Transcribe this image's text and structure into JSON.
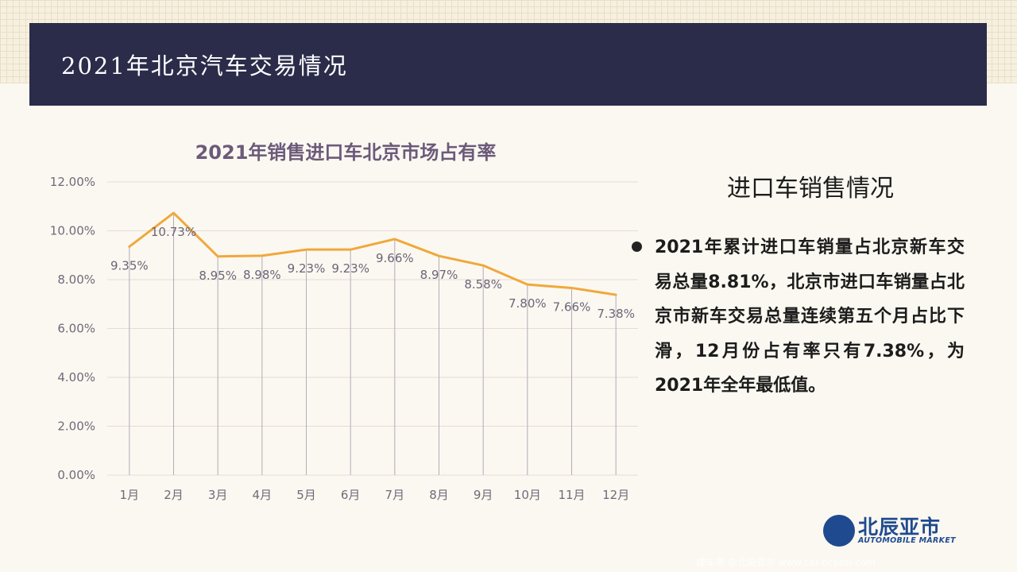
{
  "header": {
    "title": "2021年北京汽车交易情况"
  },
  "chart_data": {
    "type": "line",
    "title": "2021年销售进口车北京市场占有率",
    "categories": [
      "1月",
      "2月",
      "3月",
      "4月",
      "5月",
      "6月",
      "7月",
      "8月",
      "9月",
      "10月",
      "11月",
      "12月"
    ],
    "series": [
      {
        "values": [
          9.35,
          10.73,
          8.95,
          8.98,
          9.23,
          9.23,
          9.66,
          8.97,
          8.58,
          7.8,
          7.66,
          7.38
        ]
      }
    ],
    "data_labels": [
      "9.35%",
      "10.73%",
      "8.95%",
      "8.98%",
      "9.23%",
      "9.23%",
      "9.66%",
      "8.97%",
      "8.58%",
      "7.80%",
      "7.66%",
      "7.38%"
    ],
    "yticks": [
      "0.00%",
      "2.00%",
      "4.00%",
      "6.00%",
      "8.00%",
      "10.00%",
      "12.00%"
    ],
    "ylim": [
      0,
      12
    ],
    "xlabel": "",
    "ylabel": "",
    "grid": true,
    "colors": {
      "line": "#f0a83c",
      "grid": "#e4ddd6",
      "drop": "#b3abb8",
      "axis_text": "#6f6a7a",
      "label_text": "#6c6478"
    }
  },
  "side": {
    "title": "进口车销售情况",
    "paragraph": "2021年累计进口车销量占北京新车交易总量8.81%，北京市进口车销量占北京市新车交易总量连续第五个月占比下滑，12月份占有率只有7.38%，为2021年全年最低值。"
  },
  "logo": {
    "name": "北辰亚市",
    "subtitle": "AUTOMOBILE MARKET"
  },
  "watermark": "懂车帝 @北辰亚市 www.car-bcyasi.com"
}
